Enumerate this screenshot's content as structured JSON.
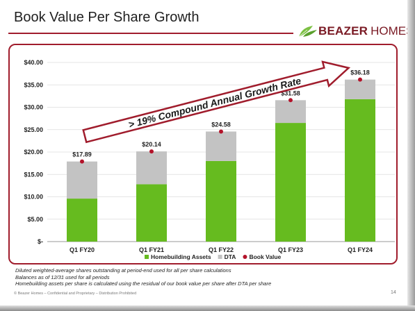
{
  "slide": {
    "title": "Book Value Per Share Growth",
    "logo_word1": "BEAZER",
    "logo_word2": "HOMES",
    "arrow_text": "> 19% Compound Annual Growth Rate",
    "footnotes": [
      "Diluted weighted-average shares outstanding at period-end used for all per share calculations",
      "Balances as of 12/31 used for all periods",
      "Homebuilding assets per share is calculated using the residual of our book value per share after DTA per share"
    ],
    "footer": "© Beazer Homes – Confidential and Proprietary – Distribution Prohibited",
    "page_number": "14"
  },
  "colors": {
    "homebuilding": "#66bb1f",
    "dta": "#c3c3c3",
    "book_value": "#b3132a",
    "accent": "#a01c2c",
    "logo_leaf": "#7cc043"
  },
  "chart_data": {
    "type": "bar",
    "stacked": true,
    "categories": [
      "Q1 FY20",
      "Q1 FY21",
      "Q1 FY22",
      "Q1 FY23",
      "Q1 FY24"
    ],
    "series": [
      {
        "name": "Homebuilding Assets",
        "values": [
          9.6,
          12.8,
          18.0,
          26.5,
          31.8
        ]
      },
      {
        "name": "DTA",
        "values": [
          8.29,
          7.34,
          6.58,
          5.08,
          4.38
        ]
      }
    ],
    "book_value": {
      "name": "Book Value",
      "values": [
        17.89,
        20.14,
        24.58,
        31.58,
        36.18
      ],
      "labels": [
        "$17.89",
        "$20.14",
        "$24.58",
        "$31.58",
        "$36.18"
      ]
    },
    "ylim": [
      0,
      40
    ],
    "yticks": [
      0,
      5,
      10,
      15,
      20,
      25,
      30,
      35,
      40
    ],
    "ytick_labels": [
      "$-",
      "$5.00",
      "$10.00",
      "$15.00",
      "$20.00",
      "$25.00",
      "$30.00",
      "$35.00",
      "$40.00"
    ],
    "grid": true,
    "legend_position": "bottom",
    "xlabel": "",
    "ylabel": ""
  }
}
